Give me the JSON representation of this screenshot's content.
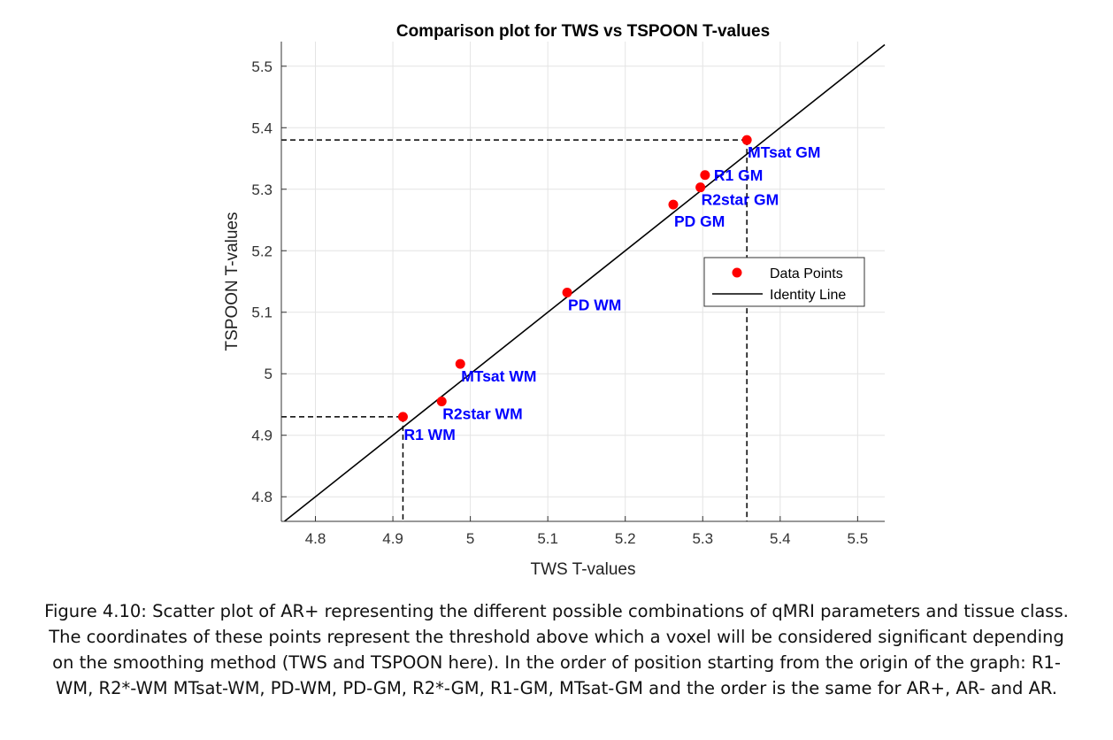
{
  "chart_data": {
    "type": "scatter",
    "title": "Comparison plot for TWS vs TSPOON T-values",
    "xlabel": "TWS T-values",
    "ylabel": "TSPOON T-values",
    "xlim": [
      4.756,
      5.535
    ],
    "ylim": [
      4.76,
      5.54
    ],
    "xticks": [
      "4.8",
      "4.9",
      "5",
      "5.1",
      "5.2",
      "5.3",
      "5.4",
      "5.5"
    ],
    "yticks": [
      "4.8",
      "4.9",
      "5",
      "5.1",
      "5.2",
      "5.3",
      "5.4",
      "5.5"
    ],
    "grid": true,
    "legend": {
      "placement": "right",
      "entries": [
        "Data Points",
        "Identity Line"
      ]
    },
    "points": [
      {
        "label": "R1 WM",
        "x": 4.913,
        "y": 4.93
      },
      {
        "label": "R2star WM",
        "x": 4.963,
        "y": 4.955
      },
      {
        "label": "MTsat WM",
        "x": 4.987,
        "y": 5.016
      },
      {
        "label": "PD WM",
        "x": 5.125,
        "y": 5.132
      },
      {
        "label": "PD GM",
        "x": 5.262,
        "y": 5.275
      },
      {
        "label": "R2star GM",
        "x": 5.297,
        "y": 5.303
      },
      {
        "label": "R1 GM",
        "x": 5.303,
        "y": 5.323
      },
      {
        "label": "MTsat GM",
        "x": 5.357,
        "y": 5.38
      }
    ],
    "reference_lines": [
      {
        "x": 4.913,
        "y": 4.93
      },
      {
        "x": 5.357,
        "y": 5.38
      }
    ],
    "colors": {
      "points": "#ff0000",
      "labels": "#0000ff",
      "line": "#000000"
    }
  },
  "caption": "Figure 4.10: Scatter plot of AR+ representing the different possible combinations of qMRI parameters and tissue class. The coordinates of these points represent the threshold above which a voxel will be considered significant depending on the smoothing method (TWS and TSPOON here). In the order of position starting from the origin of the graph: R1-WM, R2*-WM MTsat-WM, PD-WM, PD-GM, R2*-GM, R1-GM, MTsat-GM and the order is the same for AR+, AR- and AR."
}
